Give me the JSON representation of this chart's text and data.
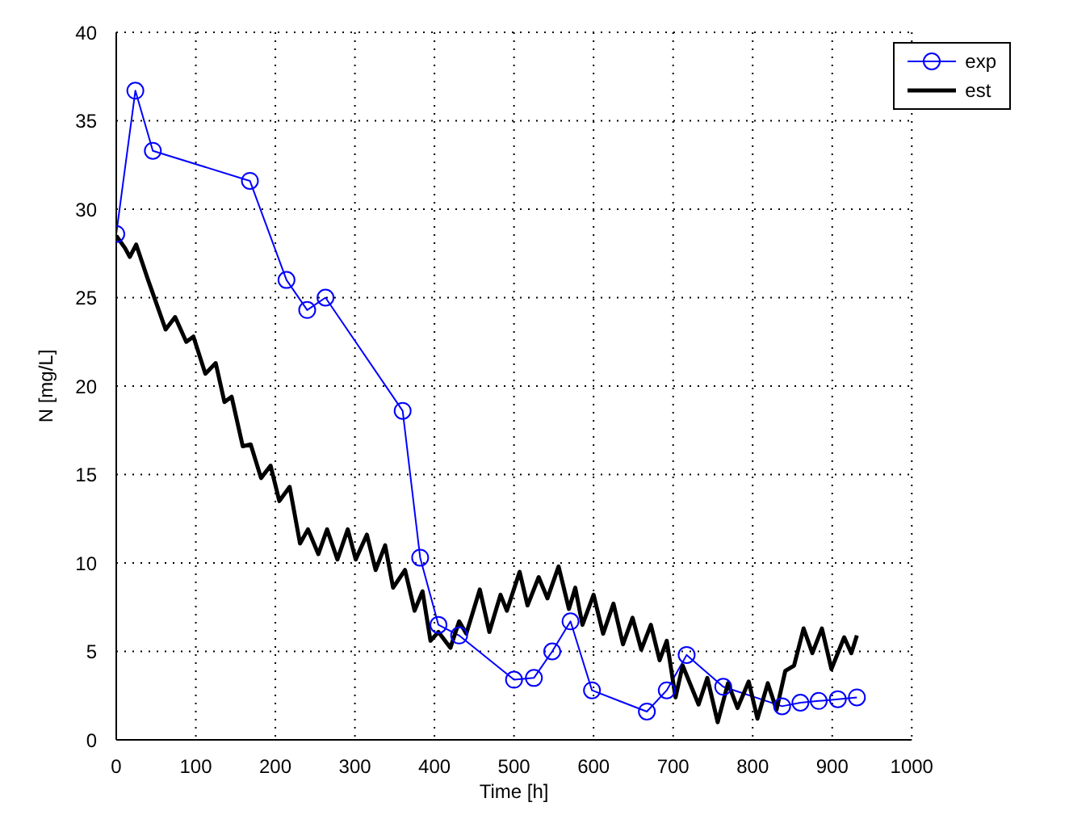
{
  "chart_data": {
    "type": "line",
    "xlabel": "Time [h]",
    "ylabel": "N [mg/L]",
    "xlim": [
      0,
      1000
    ],
    "ylim": [
      0,
      40
    ],
    "xticks": [
      0,
      100,
      200,
      300,
      400,
      500,
      600,
      700,
      800,
      900,
      1000
    ],
    "yticks": [
      0,
      5,
      10,
      15,
      20,
      25,
      30,
      35,
      40
    ],
    "grid": true,
    "legend": "top right",
    "series": [
      {
        "name": "exp",
        "color": "#0000ff",
        "marker": "circle",
        "x": [
          0,
          24,
          46,
          168,
          214,
          240,
          263,
          360,
          382,
          405,
          431,
          500,
          525,
          548,
          571,
          598,
          667,
          692,
          717,
          763,
          837,
          860,
          883,
          907,
          931
        ],
        "values": [
          28.6,
          36.7,
          33.3,
          31.6,
          26.0,
          24.3,
          25.0,
          18.6,
          10.3,
          6.5,
          5.9,
          3.4,
          3.5,
          5.0,
          6.7,
          2.8,
          1.6,
          2.8,
          4.8,
          3.0,
          1.9,
          2.1,
          2.2,
          2.3,
          2.4
        ]
      },
      {
        "name": "est",
        "color": "#000000",
        "marker": "none",
        "x": [
          0,
          11,
          17,
          25,
          40,
          62,
          74,
          88,
          97,
          112,
          125,
          136,
          145,
          159,
          169,
          182,
          194,
          205,
          218,
          231,
          241,
          254,
          265,
          278,
          291,
          301,
          315,
          326,
          338,
          348,
          363,
          375,
          385,
          395,
          405,
          420,
          431,
          440,
          457,
          469,
          483,
          491,
          507,
          517,
          531,
          542,
          556,
          569,
          577,
          586,
          600,
          612,
          625,
          637,
          649,
          660,
          672,
          683,
          692,
          703,
          712,
          732,
          743,
          756,
          769,
          781,
          795,
          806,
          819,
          830,
          841,
          852,
          864,
          875,
          887,
          899,
          915,
          924,
          931
        ],
        "values": [
          28.5,
          27.8,
          27.3,
          28.0,
          26.0,
          23.2,
          23.9,
          22.5,
          22.8,
          20.7,
          21.3,
          19.1,
          19.4,
          16.6,
          16.7,
          14.8,
          15.5,
          13.5,
          14.3,
          11.1,
          11.9,
          10.5,
          11.9,
          10.2,
          11.9,
          10.2,
          11.6,
          9.6,
          11.0,
          8.6,
          9.6,
          7.3,
          8.4,
          5.6,
          6.1,
          5.2,
          6.7,
          6.0,
          8.5,
          6.1,
          8.2,
          7.3,
          9.5,
          7.6,
          9.2,
          8.0,
          9.8,
          7.4,
          8.6,
          6.5,
          8.2,
          6.0,
          7.7,
          5.4,
          6.9,
          5.1,
          6.5,
          4.5,
          5.6,
          2.4,
          4.2,
          2.0,
          3.5,
          1.0,
          3.2,
          1.8,
          3.3,
          1.2,
          3.2,
          1.7,
          3.9,
          4.2,
          6.3,
          4.9,
          6.3,
          4.0,
          5.8,
          4.9,
          5.9
        ]
      }
    ]
  }
}
